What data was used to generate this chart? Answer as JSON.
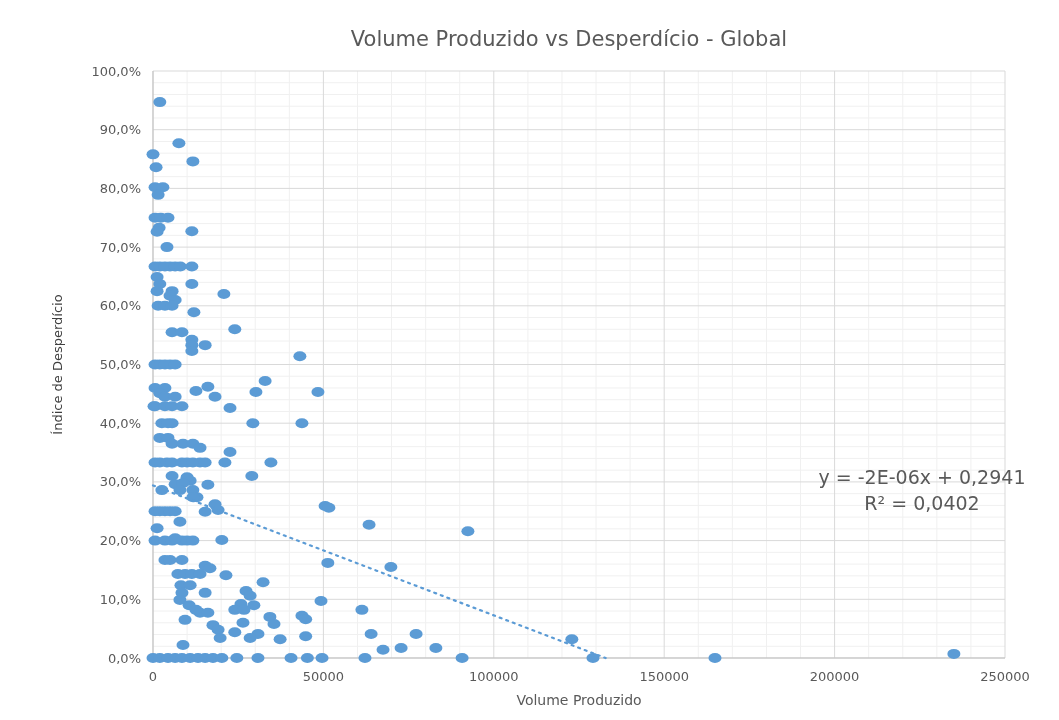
{
  "chart_data": {
    "type": "scatter",
    "title": "Volume Produzido vs Desperdício - Global",
    "xlabel": "Volume Produzido",
    "ylabel": "Índice de Desperdício",
    "xlim": [
      0,
      250000
    ],
    "xticks": [
      0,
      50000,
      100000,
      150000,
      200000,
      250000
    ],
    "ylim": [
      0,
      100
    ],
    "yticks": [
      {
        "value": 0,
        "label": "0,0%"
      },
      {
        "value": 10,
        "label": "10,0%"
      },
      {
        "value": 20,
        "label": "20,0%"
      },
      {
        "value": 30,
        "label": "30,0%"
      },
      {
        "value": 40,
        "label": "40,0%"
      },
      {
        "value": 50,
        "label": "50,0%"
      },
      {
        "value": 60,
        "label": "60,0%"
      },
      {
        "value": 70,
        "label": "70,0%"
      },
      {
        "value": 80,
        "label": "80,0%"
      },
      {
        "value": 90,
        "label": "90,0%"
      },
      {
        "value": 100,
        "label": "100,0%"
      }
    ],
    "grid": true,
    "annotations": [
      "y = -2E-06x + 0,2941",
      "R² = 0,0402"
    ],
    "series": [
      {
        "marker": "circle",
        "color": "#5b9bd5",
        "x": [
          2000,
          7600,
          0,
          11700,
          900,
          600,
          2900,
          1500,
          600,
          2300,
          4400,
          1800,
          1200,
          11400,
          4100,
          600,
          2000,
          3500,
          5000,
          6500,
          8000,
          11400,
          1200,
          2000,
          11400,
          1200,
          5600,
          5000,
          6500,
          20800,
          1500,
          3500,
          5600,
          12000,
          5600,
          8500,
          24000,
          11400,
          11400,
          15300,
          11400,
          43100,
          600,
          2000,
          3500,
          5000,
          6500,
          32900,
          600,
          3500,
          16100,
          2000,
          3500,
          12600,
          30200,
          48400,
          18200,
          6500,
          300,
          600,
          3500,
          5600,
          8500,
          22600,
          2600,
          4400,
          5600,
          29300,
          43700,
          2000,
          4400,
          5600,
          8800,
          11700,
          13800,
          22600,
          600,
          2000,
          4100,
          5600,
          8500,
          10000,
          11700,
          13800,
          15300,
          21100,
          34600,
          5600,
          10900,
          10000,
          29000,
          6500,
          8800,
          16100,
          2600,
          7900,
          11700,
          12900,
          11700,
          18200,
          19100,
          15300,
          600,
          2000,
          3500,
          5000,
          6500,
          50500,
          51600,
          7900,
          63400,
          92400,
          1200,
          600,
          3500,
          5600,
          8500,
          10000,
          11700,
          20200,
          6500,
          51300,
          3500,
          5000,
          8500,
          69800,
          15300,
          16700,
          7300,
          9400,
          11400,
          13800,
          21400,
          32300,
          8200,
          10900,
          8500,
          15300,
          27300,
          28500,
          7900,
          49300,
          10600,
          29600,
          25800,
          12600,
          24000,
          26700,
          61300,
          13800,
          16100,
          34300,
          43700,
          44800,
          9400,
          17600,
          26400,
          35500,
          19100,
          24000,
          30800,
          37300,
          28500,
          64000,
          44800,
          77200,
          19700,
          8800,
          67500,
          72800,
          83000,
          122900,
          0,
          2000,
          4400,
          6500,
          8500,
          10900,
          13200,
          15300,
          17600,
          20200,
          24600,
          30800,
          40500,
          45300,
          49600,
          62200,
          90700,
          129100,
          164900,
          235000
        ],
        "values": [
          94.7,
          87.7,
          85.8,
          84.6,
          83.6,
          80.2,
          80.2,
          78.9,
          75,
          75,
          75,
          73.3,
          72.6,
          72.7,
          70,
          66.7,
          66.7,
          66.7,
          66.7,
          66.7,
          66.7,
          66.7,
          64.9,
          63.7,
          63.7,
          62.5,
          62.5,
          61.7,
          61,
          62,
          60,
          60,
          60,
          58.9,
          55.5,
          55.5,
          56,
          54.2,
          53.3,
          53.3,
          52.3,
          51.4,
          50,
          50,
          50,
          50,
          50,
          47.2,
          46,
          46,
          46.2,
          45.1,
          44.5,
          45.5,
          45.3,
          45.3,
          44.5,
          44.5,
          42.9,
          42.9,
          42.9,
          42.9,
          42.9,
          42.6,
          40,
          40,
          40,
          40,
          40,
          37.5,
          37.5,
          36.5,
          36.5,
          36.5,
          35.8,
          35.1,
          33.3,
          33.3,
          33.3,
          33.3,
          33.3,
          33.3,
          33.3,
          33.3,
          33.3,
          33.3,
          33.3,
          31,
          30.2,
          30.8,
          31,
          29.6,
          29.8,
          29.5,
          28.6,
          28.6,
          28.6,
          27.4,
          27.4,
          26.2,
          25.2,
          24.9,
          25,
          25,
          25,
          25,
          25,
          25.9,
          25.6,
          23.2,
          22.7,
          21.6,
          22.1,
          20,
          20,
          20,
          20,
          20,
          20,
          20.1,
          20.4,
          16.2,
          16.7,
          16.7,
          16.7,
          15.5,
          15.7,
          15.3,
          14.3,
          14.3,
          14.3,
          14.3,
          14.1,
          12.9,
          12.4,
          12.4,
          11.1,
          11.1,
          11.4,
          10.6,
          9.9,
          9.7,
          9,
          9,
          9.2,
          8.2,
          8.2,
          8.2,
          8.2,
          7.7,
          7.7,
          7,
          7.2,
          6.6,
          6.5,
          5.6,
          6,
          5.8,
          4.8,
          4.4,
          4.1,
          3.2,
          3.4,
          4.1,
          3.7,
          4.1,
          3.4,
          2.2,
          1.4,
          1.7,
          1.7,
          3.2,
          0,
          0,
          0,
          0,
          0,
          0,
          0,
          0,
          0,
          0,
          0,
          0,
          0,
          0,
          0,
          0,
          0,
          0,
          0,
          0.7
        ]
      },
      {
        "type": "line",
        "color": "#5b9bd5",
        "line_style": "dotted",
        "x": [
          0,
          132800
        ],
        "values": [
          29.4,
          0
        ]
      }
    ]
  }
}
